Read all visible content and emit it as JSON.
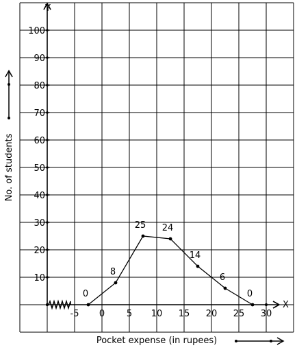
{
  "chart_data": {
    "type": "line",
    "title": "",
    "xlabel": "Pocket expense (in rupees)",
    "ylabel": "No. of students",
    "x_axis_letter": "X",
    "y_axis_letter": "Y",
    "x_ticks": [
      "-5",
      "0",
      "5",
      "10",
      "15",
      "20",
      "25",
      "30"
    ],
    "y_ticks": [
      "10",
      "20",
      "30",
      "40",
      "50",
      "60",
      "70",
      "80",
      "90",
      "100"
    ],
    "xlim": [
      -10,
      32.5
    ],
    "ylim": [
      0,
      110
    ],
    "grid": true,
    "series": [
      {
        "x": [
          -2.5,
          2.5,
          7.5,
          12.5,
          17.5,
          22.5,
          27.5
        ],
        "y": [
          0,
          8,
          25,
          24,
          14,
          6,
          0
        ],
        "labels": [
          "0",
          "8",
          "25",
          "24",
          "14",
          "6",
          "0"
        ]
      }
    ]
  }
}
